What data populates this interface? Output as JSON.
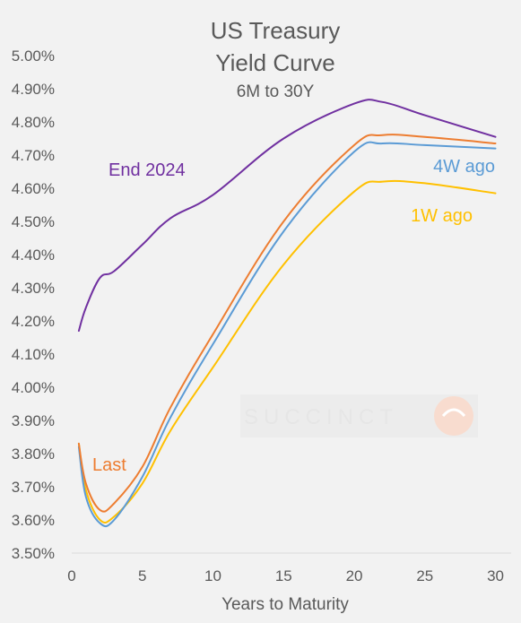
{
  "chart_data": {
    "type": "line",
    "title_lines": [
      "US Treasury",
      "Yield Curve"
    ],
    "subtitle": "6M to 30Y",
    "xlabel": "Years to Maturity",
    "ylabel": "",
    "xlim": [
      0,
      31
    ],
    "ylim": [
      3.5,
      5.0
    ],
    "x_ticks": [
      0,
      5,
      10,
      15,
      20,
      25,
      30
    ],
    "x_tick_labels": [
      "0",
      "5",
      "10",
      "15",
      "20",
      "25",
      "30"
    ],
    "y_ticks": [
      3.5,
      3.6,
      3.7,
      3.8,
      3.9,
      4.0,
      4.1,
      4.2,
      4.3,
      4.4,
      4.5,
      4.6,
      4.7,
      4.8,
      4.9,
      5.0
    ],
    "y_tick_labels": [
      "3.50%",
      "3.60%",
      "3.70%",
      "3.80%",
      "3.90%",
      "4.00%",
      "4.10%",
      "4.20%",
      "4.30%",
      "4.40%",
      "4.50%",
      "4.60%",
      "4.70%",
      "4.80%",
      "4.90%",
      "5.00%"
    ],
    "grid": false,
    "legend": "labels placed next to lines",
    "watermark": "SUCCINCT",
    "series": [
      {
        "name": "End 2024",
        "color": "#7030a0",
        "x": [
          0.5,
          1,
          2,
          3,
          5,
          7,
          10,
          15,
          20,
          22,
          25,
          30
        ],
        "y": [
          4.17,
          4.24,
          4.33,
          4.35,
          4.43,
          4.51,
          4.58,
          4.75,
          4.855,
          4.86,
          4.82,
          4.755
        ]
      },
      {
        "name": "Last",
        "color": "#ed7d31",
        "x": [
          0.5,
          1,
          2,
          3,
          5,
          7,
          10,
          15,
          20,
          22,
          25,
          30
        ],
        "y": [
          3.83,
          3.71,
          3.63,
          3.65,
          3.76,
          3.94,
          4.16,
          4.5,
          4.73,
          4.76,
          4.755,
          4.735
        ]
      },
      {
        "name": "4W ago",
        "color": "#5b9bd5",
        "x": [
          0.5,
          1,
          2,
          3,
          5,
          7,
          10,
          15,
          20,
          22,
          25,
          30
        ],
        "y": [
          3.82,
          3.67,
          3.59,
          3.6,
          3.73,
          3.91,
          4.13,
          4.47,
          4.71,
          4.735,
          4.73,
          4.72
        ]
      },
      {
        "name": "1W ago",
        "color": "#ffc000",
        "x": [
          0.5,
          1,
          2,
          3,
          5,
          7,
          10,
          15,
          20,
          22,
          25,
          30
        ],
        "y": [
          3.83,
          3.69,
          3.6,
          3.61,
          3.71,
          3.87,
          4.06,
          4.37,
          4.59,
          4.62,
          4.615,
          4.585
        ]
      }
    ]
  }
}
